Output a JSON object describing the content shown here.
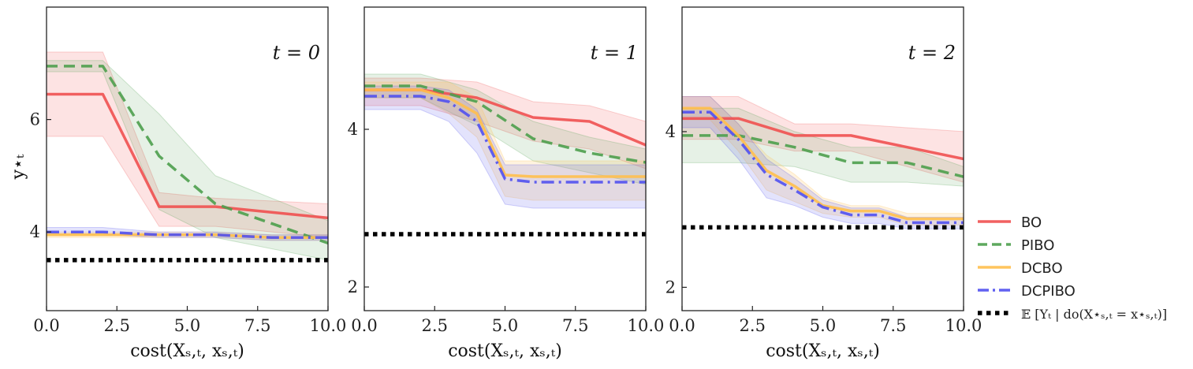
{
  "colors": {
    "BO": "#f05050",
    "PIBO": "#4c9e4c",
    "DCBO": "#ffbf4d",
    "DCPIBO": "#5050ef",
    "optimum": "#000000"
  },
  "legend": {
    "placement": "right",
    "entries": [
      {
        "key": "BO",
        "label": "BO",
        "style": "solid"
      },
      {
        "key": "PIBO",
        "label": "PIBO",
        "style": "dashed"
      },
      {
        "key": "DCBO",
        "label": "DCBO",
        "style": "solid"
      },
      {
        "key": "DCPIBO",
        "label": "DCPIBO",
        "style": "dashdot"
      },
      {
        "key": "optimum",
        "label": "𝔼 [Yₜ | do(X⋆ₛ,ₜ = x⋆ₛ,ₜ)]",
        "style": "dotted"
      }
    ]
  },
  "chart_data": [
    {
      "type": "line",
      "title": "t = 0",
      "xlabel": "cost(Xₛ,ₜ, xₛ,ₜ)",
      "ylabel": "y⋆ₜ",
      "xlim": [
        0,
        10
      ],
      "ylim": [
        2.6,
        8.0
      ],
      "xticks": [
        0.0,
        2.5,
        5.0,
        7.5,
        10.0
      ],
      "xtick_labels": [
        "0.0",
        "2.5",
        "5.0",
        "7.5",
        "10.0"
      ],
      "yticks": [
        4,
        6
      ],
      "ytick_labels": [
        "4",
        "6"
      ],
      "grid": false,
      "optimum": 3.5,
      "series": [
        {
          "name": "BO",
          "x": [
            0,
            2,
            4,
            6,
            10
          ],
          "y": [
            6.45,
            6.45,
            4.45,
            4.45,
            4.25
          ],
          "lower": [
            5.7,
            5.7,
            4.1,
            4.1,
            3.9
          ],
          "upper": [
            7.2,
            7.2,
            4.7,
            4.6,
            4.5
          ]
        },
        {
          "name": "PIBO",
          "x": [
            0,
            2,
            4,
            6,
            10
          ],
          "y": [
            6.95,
            6.95,
            5.35,
            4.5,
            3.8
          ],
          "lower": [
            6.85,
            6.85,
            4.4,
            3.9,
            3.5
          ],
          "upper": [
            7.05,
            7.05,
            6.1,
            5.0,
            4.2
          ]
        },
        {
          "name": "DCBO",
          "x": [
            0,
            2,
            4,
            6,
            8,
            10
          ],
          "y": [
            3.95,
            3.95,
            3.95,
            3.95,
            3.9,
            3.9
          ],
          "lower": [
            3.9,
            3.9,
            3.9,
            3.9,
            3.85,
            3.85
          ],
          "upper": [
            4.0,
            4.0,
            4.0,
            4.0,
            3.95,
            3.95
          ]
        },
        {
          "name": "DCPIBO",
          "x": [
            0,
            2,
            4,
            6,
            8,
            10
          ],
          "y": [
            4.0,
            4.0,
            3.95,
            3.95,
            3.9,
            3.9
          ],
          "lower": [
            3.95,
            3.95,
            3.9,
            3.9,
            3.85,
            3.85
          ],
          "upper": [
            4.08,
            4.08,
            4.0,
            4.0,
            3.95,
            3.95
          ]
        }
      ]
    },
    {
      "type": "line",
      "title": "t = 1",
      "xlabel": "cost(Xₛ,ₜ, xₛ,ₜ)",
      "ylabel": "",
      "xlim": [
        0,
        10
      ],
      "ylim": [
        1.7,
        5.55
      ],
      "xticks": [
        0.0,
        2.5,
        5.0,
        7.5,
        10.0
      ],
      "xtick_labels": [
        "0.0",
        "2.5",
        "5.0",
        "7.5",
        "10.0"
      ],
      "yticks": [
        2,
        4
      ],
      "ytick_labels": [
        "2",
        "4"
      ],
      "grid": false,
      "optimum": 2.67,
      "series": [
        {
          "name": "BO",
          "x": [
            0,
            2,
            4,
            6,
            8,
            10
          ],
          "y": [
            4.5,
            4.5,
            4.4,
            4.15,
            4.1,
            3.8
          ],
          "lower": [
            4.3,
            4.3,
            4.1,
            3.85,
            3.75,
            3.5
          ],
          "upper": [
            4.65,
            4.65,
            4.6,
            4.35,
            4.3,
            4.1
          ]
        },
        {
          "name": "PIBO",
          "x": [
            0,
            2,
            4,
            6,
            8,
            10
          ],
          "y": [
            4.55,
            4.55,
            4.35,
            3.88,
            3.7,
            3.58
          ],
          "lower": [
            4.4,
            4.4,
            4.05,
            3.6,
            3.45,
            3.3
          ],
          "upper": [
            4.7,
            4.7,
            4.5,
            4.1,
            3.9,
            3.75
          ]
        },
        {
          "name": "DCBO",
          "x": [
            0,
            2,
            3,
            4,
            5,
            6,
            8,
            10
          ],
          "y": [
            4.5,
            4.5,
            4.4,
            4.2,
            3.42,
            3.4,
            3.4,
            3.4
          ],
          "lower": [
            4.4,
            4.4,
            4.2,
            3.9,
            3.15,
            3.1,
            3.1,
            3.1
          ],
          "upper": [
            4.6,
            4.6,
            4.6,
            4.4,
            3.6,
            3.6,
            3.6,
            3.6
          ]
        },
        {
          "name": "DCPIBO",
          "x": [
            0,
            2,
            3,
            4,
            5,
            6,
            8,
            10
          ],
          "y": [
            4.42,
            4.42,
            4.35,
            4.1,
            3.37,
            3.33,
            3.33,
            3.33
          ],
          "lower": [
            4.25,
            4.25,
            4.1,
            3.7,
            3.05,
            3.0,
            3.0,
            3.0
          ],
          "upper": [
            4.55,
            4.55,
            4.5,
            4.25,
            3.55,
            3.55,
            3.55,
            3.55
          ]
        }
      ]
    },
    {
      "type": "line",
      "title": "t = 2",
      "xlabel": "cost(Xₛ,ₜ, xₛ,ₜ)",
      "ylabel": "",
      "xlim": [
        0,
        10
      ],
      "ylim": [
        1.7,
        5.6
      ],
      "xticks": [
        0.0,
        2.5,
        5.0,
        7.5,
        10.0
      ],
      "xtick_labels": [
        "0.0",
        "2.5",
        "5.0",
        "7.5",
        "10.0"
      ],
      "yticks": [
        2,
        4
      ],
      "ytick_labels": [
        "2",
        "4"
      ],
      "grid": false,
      "optimum": 2.77,
      "series": [
        {
          "name": "BO",
          "x": [
            0,
            2,
            4,
            6,
            8,
            10
          ],
          "y": [
            4.17,
            4.17,
            3.95,
            3.95,
            3.8,
            3.65
          ],
          "lower": [
            3.9,
            3.9,
            3.75,
            3.75,
            3.55,
            3.35
          ],
          "upper": [
            4.45,
            4.45,
            4.1,
            4.1,
            4.05,
            4.0
          ]
        },
        {
          "name": "PIBO",
          "x": [
            0,
            2,
            4,
            6,
            8,
            10
          ],
          "y": [
            3.95,
            3.95,
            3.8,
            3.6,
            3.6,
            3.42
          ],
          "lower": [
            3.6,
            3.6,
            3.55,
            3.35,
            3.35,
            3.3
          ],
          "upper": [
            4.3,
            4.3,
            4.0,
            3.8,
            3.8,
            3.55
          ]
        },
        {
          "name": "DCBO",
          "x": [
            0,
            1,
            2,
            3,
            4,
            5,
            6,
            7,
            8,
            9,
            10
          ],
          "y": [
            4.3,
            4.3,
            3.95,
            3.5,
            3.3,
            3.05,
            2.98,
            2.98,
            2.88,
            2.88,
            2.88
          ],
          "lower": [
            4.15,
            4.15,
            3.75,
            3.25,
            3.1,
            2.95,
            2.9,
            2.9,
            2.8,
            2.8,
            2.8
          ],
          "upper": [
            4.45,
            4.45,
            4.1,
            3.7,
            3.45,
            3.15,
            3.05,
            3.05,
            2.95,
            2.95,
            2.95
          ]
        },
        {
          "name": "DCPIBO",
          "x": [
            0,
            1,
            2,
            3,
            4,
            5,
            6,
            7,
            8,
            9,
            10
          ],
          "y": [
            4.25,
            4.25,
            3.9,
            3.45,
            3.25,
            3.03,
            2.93,
            2.93,
            2.83,
            2.83,
            2.83
          ],
          "lower": [
            4.05,
            4.05,
            3.65,
            3.15,
            3.05,
            2.9,
            2.82,
            2.82,
            2.75,
            2.75,
            2.75
          ],
          "upper": [
            4.45,
            4.45,
            4.1,
            3.65,
            3.4,
            3.12,
            3.02,
            3.02,
            2.9,
            2.9,
            2.9
          ]
        }
      ]
    }
  ]
}
